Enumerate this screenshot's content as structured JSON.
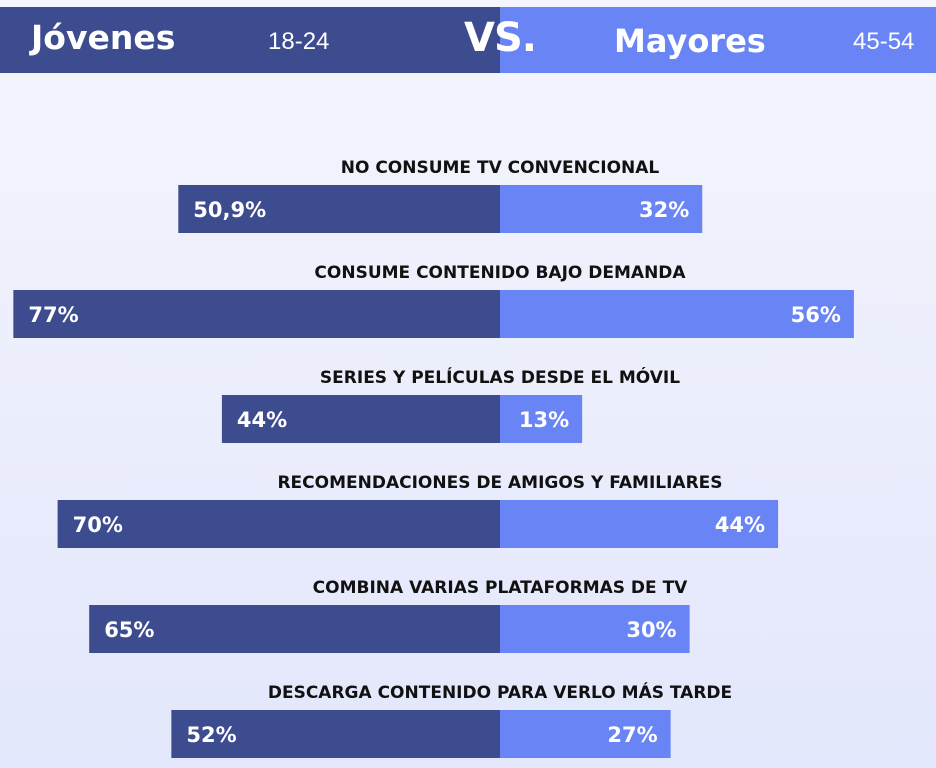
{
  "header": {
    "left_title": "Jóvenes",
    "left_range": "18-24",
    "vs": "VS.",
    "right_title": "Mayores",
    "right_range": "45-54",
    "colors": {
      "left": "#3d4b8f",
      "right": "#6984f5"
    }
  },
  "chart_data": {
    "type": "bar",
    "orientation": "horizontal-diverging",
    "title": "",
    "xlabel": "",
    "ylabel": "",
    "xlim": [
      0,
      80
    ],
    "grid": false,
    "categories": [
      "NO CONSUME TV CONVENCIONAL",
      "CONSUME CONTENIDO BAJO DEMANDA",
      "SERIES Y PELÍCULAS DESDE EL MÓVIL",
      "RECOMENDACIONES DE AMIGOS Y FAMILIARES",
      "COMBINA VARIAS PLATAFORMAS DE TV",
      "DESCARGA CONTENIDO PARA VERLO MÁS TARDE"
    ],
    "series": [
      {
        "name": "Jóvenes",
        "side": "left",
        "color": "#3d4b8f",
        "values": [
          50.9,
          77,
          44,
          70,
          65,
          52
        ],
        "labels": [
          "50,9%",
          "77%",
          "44%",
          "70%",
          "65%",
          "52%"
        ]
      },
      {
        "name": "Mayores",
        "side": "right",
        "color": "#6984f5",
        "values": [
          32,
          56,
          13,
          44,
          30,
          27
        ],
        "labels": [
          "32%",
          "56%",
          "13%",
          "44%",
          "30%",
          "27%"
        ]
      }
    ]
  }
}
